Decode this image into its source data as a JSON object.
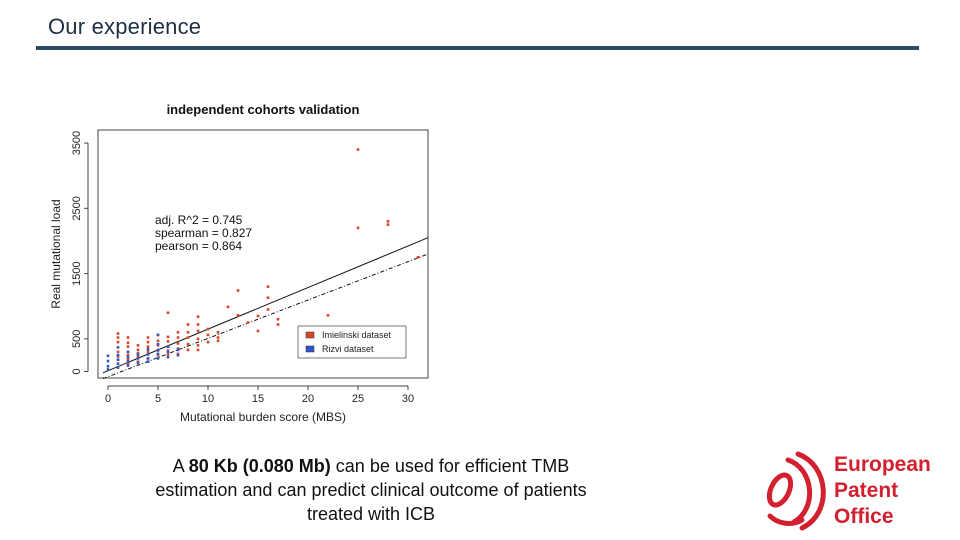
{
  "slide": {
    "title": "Our experience"
  },
  "caption": {
    "pre": "A ",
    "bold": "80 Kb (0.080 Mb)",
    "post": " can be used for efficient TMB estimation and can predict clinical outcome of patients treated with ICB"
  },
  "logo": {
    "lines": [
      "European",
      "Patent",
      "Office"
    ],
    "color": "#d3202f"
  },
  "chart_data": {
    "type": "scatter",
    "title": "independent cohorts validation",
    "xlabel": "Mutational burden score (MBS)",
    "ylabel": "Real mutational load",
    "xlim": [
      -1,
      32
    ],
    "ylim": [
      -100,
      3700
    ],
    "xticks": [
      0,
      5,
      10,
      15,
      20,
      25,
      30
    ],
    "yticks": [
      0,
      500,
      1500,
      2500,
      3500
    ],
    "grid": false,
    "legend_position": "bottom-right",
    "annotations": [
      "adj. R^2 = 0.745",
      "spearman = 0.827",
      "pearson = 0.864"
    ],
    "series": [
      {
        "name": "Imielinski dataset",
        "color": "#d9452b",
        "points": [
          [
            1,
            580
          ],
          [
            1,
            520
          ],
          [
            1,
            450
          ],
          [
            1,
            300
          ],
          [
            1,
            230
          ],
          [
            1,
            180
          ],
          [
            2,
            520
          ],
          [
            2,
            440
          ],
          [
            2,
            380
          ],
          [
            2,
            300
          ],
          [
            2,
            250
          ],
          [
            2,
            180
          ],
          [
            2,
            120
          ],
          [
            3,
            400
          ],
          [
            3,
            330
          ],
          [
            3,
            280
          ],
          [
            3,
            230
          ],
          [
            3,
            150
          ],
          [
            4,
            520
          ],
          [
            4,
            450
          ],
          [
            4,
            380
          ],
          [
            4,
            300
          ],
          [
            4,
            200
          ],
          [
            4,
            150
          ],
          [
            5,
            560
          ],
          [
            5,
            470
          ],
          [
            5,
            400
          ],
          [
            5,
            320
          ],
          [
            5,
            250
          ],
          [
            6,
            900
          ],
          [
            6,
            530
          ],
          [
            6,
            460
          ],
          [
            6,
            380
          ],
          [
            6,
            320
          ],
          [
            6,
            260
          ],
          [
            7,
            600
          ],
          [
            7,
            520
          ],
          [
            7,
            430
          ],
          [
            7,
            350
          ],
          [
            7,
            270
          ],
          [
            8,
            720
          ],
          [
            8,
            600
          ],
          [
            8,
            520
          ],
          [
            8,
            420
          ],
          [
            8,
            330
          ],
          [
            9,
            840
          ],
          [
            9,
            720
          ],
          [
            9,
            620
          ],
          [
            9,
            500
          ],
          [
            9,
            400
          ],
          [
            9,
            330
          ],
          [
            10,
            650
          ],
          [
            10,
            560
          ],
          [
            10,
            450
          ],
          [
            11,
            600
          ],
          [
            11,
            520
          ],
          [
            11,
            470
          ],
          [
            12,
            990
          ],
          [
            13,
            1240
          ],
          [
            13,
            860
          ],
          [
            14,
            750
          ],
          [
            15,
            620
          ],
          [
            15,
            850
          ],
          [
            16,
            1300
          ],
          [
            16,
            1130
          ],
          [
            16,
            950
          ],
          [
            17,
            800
          ],
          [
            17,
            720
          ],
          [
            22,
            860
          ],
          [
            25,
            3400
          ],
          [
            25,
            2200
          ],
          [
            28,
            2300
          ],
          [
            28,
            2250
          ],
          [
            31,
            1750
          ]
        ]
      },
      {
        "name": "Rizvi dataset",
        "color": "#2f55c6",
        "points": [
          [
            0,
            240
          ],
          [
            0,
            160
          ],
          [
            0,
            80
          ],
          [
            0,
            30
          ],
          [
            1,
            370
          ],
          [
            1,
            250
          ],
          [
            1,
            180
          ],
          [
            1,
            120
          ],
          [
            1,
            60
          ],
          [
            2,
            300
          ],
          [
            2,
            220
          ],
          [
            2,
            150
          ],
          [
            2,
            90
          ],
          [
            3,
            260
          ],
          [
            3,
            200
          ],
          [
            3,
            130
          ],
          [
            4,
            340
          ],
          [
            4,
            260
          ],
          [
            4,
            200
          ],
          [
            4,
            150
          ],
          [
            5,
            560
          ],
          [
            5,
            420
          ],
          [
            5,
            330
          ],
          [
            5,
            270
          ],
          [
            5,
            200
          ],
          [
            6,
            380
          ],
          [
            6,
            300
          ],
          [
            6,
            220
          ],
          [
            7,
            330
          ],
          [
            7,
            250
          ]
        ]
      }
    ],
    "fits": [
      {
        "style": "solid",
        "from": [
          -0.5,
          -20
        ],
        "to": [
          32,
          2050
        ]
      },
      {
        "style": "dashdot",
        "from": [
          -0.5,
          -110
        ],
        "to": [
          32,
          1800
        ]
      }
    ]
  }
}
